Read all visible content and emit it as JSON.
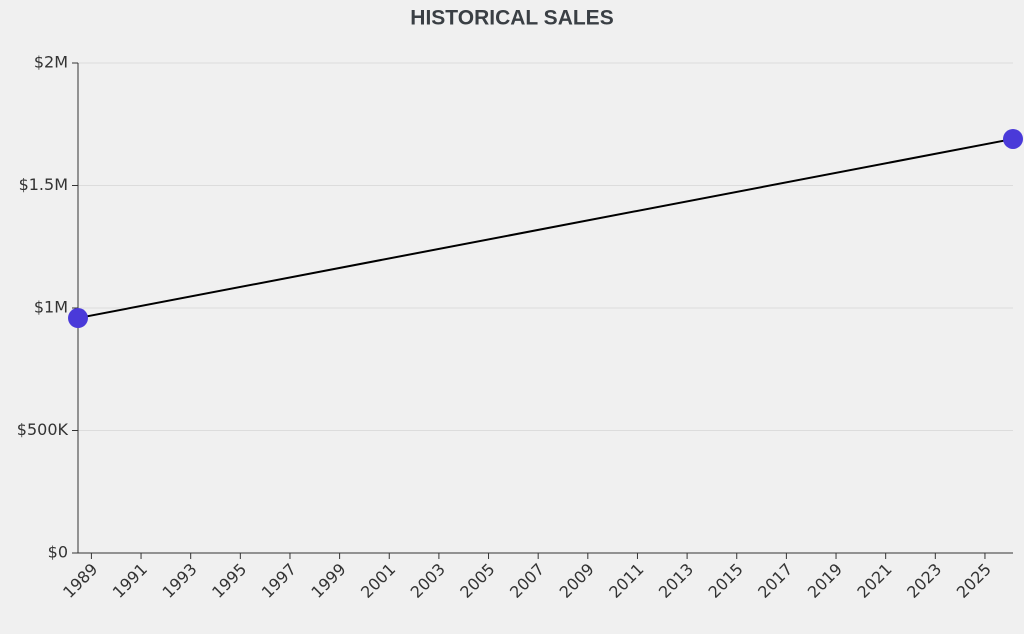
{
  "chart_data": {
    "type": "line",
    "title": "HISTORICAL SALES",
    "x": [
      1988.46,
      2026.13
    ],
    "values": [
      959000,
      1690000
    ],
    "color": "#4a3ad9",
    "line_color": "#000000",
    "xlim": [
      1988.46,
      2026.13
    ],
    "xticks": [
      1989,
      1991,
      1993,
      1995,
      1997,
      1999,
      2001,
      2003,
      2005,
      2007,
      2009,
      2011,
      2013,
      2015,
      2017,
      2019,
      2021,
      2023,
      2025
    ],
    "ylim": [
      0,
      2000000
    ],
    "yticks": [
      {
        "value": 0,
        "label": "$0"
      },
      {
        "value": 500000,
        "label": "$500K"
      },
      {
        "value": 1000000,
        "label": "$1M"
      },
      {
        "value": 1500000,
        "label": "$1.5M"
      },
      {
        "value": 2000000,
        "label": "$2M"
      }
    ],
    "grid": true
  }
}
